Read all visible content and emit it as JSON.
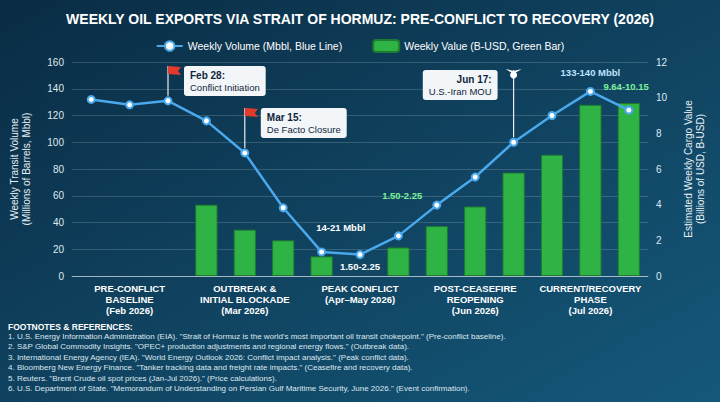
{
  "chart_data": {
    "type": "combo",
    "title": "WEEKLY OIL EXPORTS VIA STRAIT OF HORMUZ: PRE-CONFLICT TO RECOVERY (2026)",
    "categories": [
      null,
      "PRE-CONFLICT BASELINE (Feb 2026)",
      null,
      null,
      "OUTBREAK & INITIAL BLOCKADE (Mar 2026)",
      null,
      null,
      "PEAK CONFLICT (Apr–May 2026)",
      null,
      null,
      "POST-CEASEFIRE REOPENING (Jun 2026)",
      null,
      null,
      "CURRENT/RECOVERY PHASE (Jul 2026)",
      null
    ],
    "series": [
      {
        "name": "Weekly Volume (Mbbl, Blue Line)",
        "type": "line",
        "color": "#4aa8ec",
        "marker": "circle",
        "line_style": "solid",
        "values": [
          132,
          128,
          131,
          116,
          92,
          51,
          18,
          16,
          30,
          53,
          74,
          100,
          120,
          138,
          124
        ]
      },
      {
        "name": "Weekly Value (B-USD, Green Bar)",
        "type": "bar",
        "color": "#2fb344",
        "axis": "y2",
        "values": [
          null,
          null,
          null,
          4.0,
          2.6,
          2.0,
          1.1,
          null,
          1.6,
          2.8,
          3.9,
          5.8,
          6.8,
          9.6,
          9.7
        ]
      }
    ],
    "ylabel": "Weekly Transit Volume (Millions of Barrels, Mbbl)",
    "y2label": "Estimated Weekly Cargo Value (Billions of USD, B-USD)",
    "ylim": [
      0,
      160
    ],
    "yticks": [
      0,
      20,
      40,
      60,
      80,
      100,
      120,
      140,
      160
    ],
    "y2lim": [
      0,
      12
    ],
    "y2ticks": [
      0,
      2,
      4,
      6,
      8,
      10,
      12
    ],
    "grid": true,
    "legend": "top",
    "annotations": [
      "Feb 28: Conflict Initiation",
      "Mar 15: De Facto Closure",
      "Jun 17: U.S.-Iran MOU",
      "14-21 Mbbl",
      "1.50-2.25",
      "1.50-2.25",
      "133-140 Mbbl",
      "9.64-10.15"
    ],
    "footnotes": {
      "title": "FOOTNOTES & REFERENCES:",
      "items": [
        "1. U.S. Energy Information Administration (EIA). \"Strait of Hormuz is the world's most important oil transit chokepoint.\" (Pre-conflict baseline).",
        "2. S&P Global Commodity Insights. \"OPEC+ production adjustments and regional energy flows.\" (Outbreak data).",
        "3. International Energy Agency (IEA). \"World Energy Outlook 2026: Conflict impact analysis.\" (Peak conflict data).",
        "4. Bloomberg New Energy Finance. \"Tanker tracking data and freight rate impacts.\" (Ceasefire and recovery data).",
        "5. Reuters. \"Brent Crude oil spot prices (Jan-Jul 2026).\" (Price calculations).",
        "6. U.S. Department of State. \"Memorandum of Understanding on Persian Gulf Maritime Security, June 2026.\" (Event confirmation)."
      ]
    }
  }
}
